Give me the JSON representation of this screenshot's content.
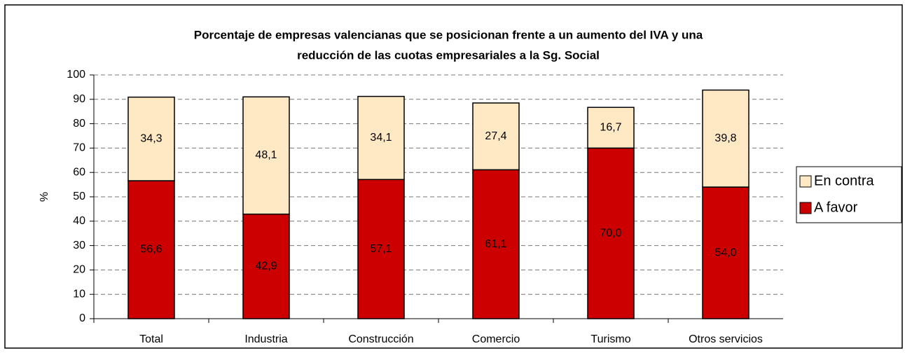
{
  "chart_data": {
    "type": "stacked_bar",
    "title": [
      "Porcentaje de empresas valencianas que se posicionan frente a un aumento del IVA y una",
      "reducción de las cuotas empresariales a la Sg. Social"
    ],
    "y_label": "%",
    "categories": [
      "Total",
      "Industria",
      "Construcción",
      "Comercio",
      "Turismo",
      "Otros servicios"
    ],
    "series": [
      {
        "name": "A favor",
        "color": "#cc0000",
        "values": [
          56.6,
          42.9,
          57.1,
          61.1,
          70.0,
          54.0
        ],
        "value_labels": [
          "56,6",
          "42,9",
          "57,1",
          "61,1",
          "70,0",
          "54,0"
        ]
      },
      {
        "name": "En contra",
        "color": "#ffe9c4",
        "values": [
          34.3,
          48.1,
          34.1,
          27.4,
          16.7,
          39.8
        ],
        "value_labels": [
          "34,3",
          "48,1",
          "34,1",
          "27,4",
          "16,7",
          "39,8"
        ]
      }
    ],
    "ylim": [
      0,
      100
    ],
    "yticks": [
      0,
      10,
      20,
      30,
      40,
      50,
      60,
      70,
      80,
      90,
      100
    ],
    "grid": true,
    "legend": "right"
  }
}
